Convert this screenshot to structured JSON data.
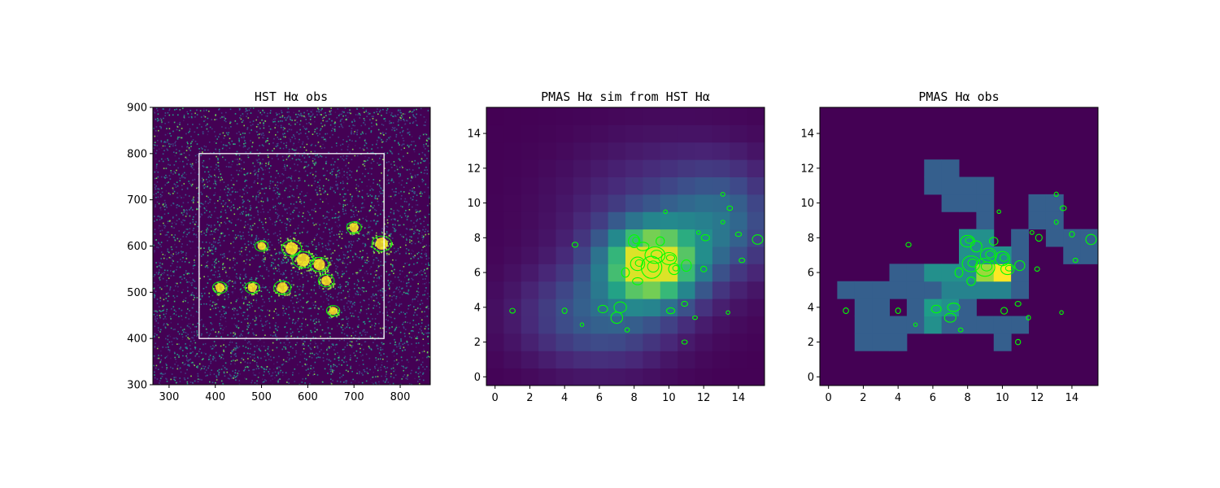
{
  "figure": {
    "background": "#ffffff"
  },
  "colors": {
    "viridis_low": "#440154",
    "viridis_high": "#fde725",
    "contour": "#00ff00",
    "box": "#ffffff"
  },
  "chart_data": [
    {
      "type": "heatmap",
      "title": "HST Hα obs",
      "xlabel": "",
      "ylabel": "",
      "xlim": [
        265,
        865
      ],
      "ylim": [
        300,
        900
      ],
      "xticks": [
        300,
        400,
        500,
        600,
        700,
        800
      ],
      "yticks": [
        300,
        400,
        500,
        600,
        700,
        800,
        900
      ],
      "colormap": "viridis",
      "overlay_box": {
        "x": [
          365,
          765
        ],
        "y": [
          400,
          800
        ],
        "color": "white"
      },
      "bright_regions": [
        {
          "x": 590,
          "y": 570,
          "strength": 1.0
        },
        {
          "x": 565,
          "y": 595,
          "strength": 0.9
        },
        {
          "x": 625,
          "y": 560,
          "strength": 0.8
        },
        {
          "x": 760,
          "y": 605,
          "strength": 0.9
        },
        {
          "x": 545,
          "y": 510,
          "strength": 0.7
        },
        {
          "x": 640,
          "y": 525,
          "strength": 0.6
        },
        {
          "x": 480,
          "y": 510,
          "strength": 0.5
        },
        {
          "x": 410,
          "y": 510,
          "strength": 0.5
        },
        {
          "x": 700,
          "y": 640,
          "strength": 0.5
        },
        {
          "x": 655,
          "y": 460,
          "strength": 0.4
        },
        {
          "x": 500,
          "y": 600,
          "strength": 0.4
        }
      ]
    },
    {
      "type": "heatmap",
      "title": "PMAS Hα sim from HST Hα",
      "xlabel": "",
      "ylabel": "",
      "xlim": [
        -0.5,
        15.5
      ],
      "ylim": [
        -0.5,
        15.5
      ],
      "xticks": [
        0,
        2,
        4,
        6,
        8,
        10,
        12,
        14
      ],
      "yticks": [
        0,
        2,
        4,
        6,
        8,
        10,
        12,
        14
      ],
      "colormap": "viridis",
      "grid_size": [
        16,
        16
      ],
      "components": [
        {
          "x": 9,
          "y": 6.5,
          "sx": 1.8,
          "sy": 1.5,
          "amp": 1.0
        },
        {
          "x": 6,
          "y": 3.5,
          "sx": 3.0,
          "sy": 2.0,
          "amp": 0.3
        },
        {
          "x": 13,
          "y": 9,
          "sx": 2.0,
          "sy": 2.0,
          "amp": 0.25
        },
        {
          "x": 10,
          "y": 9,
          "sx": 4.0,
          "sy": 3.0,
          "amp": 0.2
        }
      ],
      "contours": true
    },
    {
      "type": "heatmap",
      "title": "PMAS Hα obs",
      "xlabel": "",
      "ylabel": "",
      "xlim": [
        -0.5,
        15.5
      ],
      "ylim": [
        -0.5,
        15.5
      ],
      "xticks": [
        0,
        2,
        4,
        6,
        8,
        10,
        12,
        14
      ],
      "yticks": [
        0,
        2,
        4,
        6,
        8,
        10,
        12,
        14
      ],
      "colormap": "viridis",
      "vmax": 1.0,
      "cells": [
        [
          2,
          2,
          0.3
        ],
        [
          3,
          2,
          0.3
        ],
        [
          4,
          2,
          0.3
        ],
        [
          10,
          2,
          0.3
        ],
        [
          2,
          3,
          0.3
        ],
        [
          3,
          3,
          0.3
        ],
        [
          4,
          3,
          0.3
        ],
        [
          5,
          3,
          0.3
        ],
        [
          6,
          3,
          0.3
        ],
        [
          7,
          3,
          0.3
        ],
        [
          8,
          3,
          0.3
        ],
        [
          9,
          3,
          0.3
        ],
        [
          10,
          3,
          0.3
        ],
        [
          11,
          3,
          0.3
        ],
        [
          2,
          4,
          0.3
        ],
        [
          3,
          4,
          0.3
        ],
        [
          5,
          4,
          0.3
        ],
        [
          6,
          4,
          0.5
        ],
        [
          7,
          4,
          0.5
        ],
        [
          8,
          4,
          0.3
        ],
        [
          1,
          5,
          0.3
        ],
        [
          2,
          5,
          0.3
        ],
        [
          3,
          5,
          0.3
        ],
        [
          4,
          5,
          0.3
        ],
        [
          5,
          5,
          0.3
        ],
        [
          6,
          5,
          0.3
        ],
        [
          7,
          5,
          0.45
        ],
        [
          8,
          5,
          0.45
        ],
        [
          9,
          5,
          0.45
        ],
        [
          10,
          5,
          0.45
        ],
        [
          11,
          5,
          0.3
        ],
        [
          4,
          6,
          0.3
        ],
        [
          5,
          6,
          0.3
        ],
        [
          6,
          6,
          0.5
        ],
        [
          7,
          6,
          0.5
        ],
        [
          8,
          6,
          0.5
        ],
        [
          9,
          6,
          0.5
        ],
        [
          10,
          6,
          0.3
        ],
        [
          11,
          6,
          0.3
        ],
        [
          8,
          7,
          0.5
        ],
        [
          9,
          7,
          0.5
        ],
        [
          11,
          7,
          0.3
        ],
        [
          14,
          7,
          0.3
        ],
        [
          15,
          7,
          0.3
        ],
        [
          8,
          8,
          0.5
        ],
        [
          9,
          8,
          0.5
        ],
        [
          11,
          8,
          0.3
        ],
        [
          13,
          8,
          0.3
        ],
        [
          14,
          8,
          0.3
        ],
        [
          15,
          8,
          0.3
        ],
        [
          9,
          9,
          0.3
        ],
        [
          12,
          9,
          0.3
        ],
        [
          13,
          9,
          0.3
        ],
        [
          7,
          10,
          0.3
        ],
        [
          8,
          10,
          0.3
        ],
        [
          9,
          10,
          0.3
        ],
        [
          12,
          10,
          0.3
        ],
        [
          13,
          10,
          0.3
        ],
        [
          6,
          11,
          0.3
        ],
        [
          7,
          11,
          0.3
        ],
        [
          8,
          11,
          0.3
        ],
        [
          9,
          11,
          0.3
        ],
        [
          6,
          12,
          0.3
        ],
        [
          7,
          12,
          0.3
        ],
        [
          8,
          6,
          0.5
        ],
        [
          9,
          6,
          0.5
        ],
        [
          7,
          6,
          0.5
        ],
        [
          6,
          3,
          0.5
        ],
        [
          6,
          4,
          0.55
        ],
        [
          7,
          3,
          0.3
        ],
        [
          9,
          6,
          0.85
        ],
        [
          9,
          6,
          0.85
        ],
        [
          10,
          6,
          1.0
        ],
        [
          9,
          7,
          0.5
        ],
        [
          10,
          7,
          0.5
        ],
        [
          10,
          5,
          0.45
        ]
      ],
      "contours": true
    }
  ]
}
